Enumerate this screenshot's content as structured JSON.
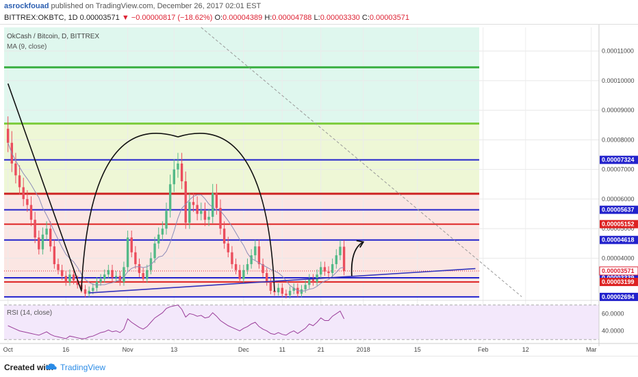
{
  "header": {
    "author": "asrockfouad",
    "published": "published on TradingView.com, December 26, 2017 02:01 EST",
    "symbol": "BITTREX:OKBTC, 1D",
    "last": "0.00003571",
    "change": "▼ −0.00000817 (−18.62%)",
    "o_label": "O:",
    "o": "0.00004389",
    "h_label": "H:",
    "h": "0.00004788",
    "l_label": "L:",
    "l": "0.00003330",
    "c_label": "C:",
    "c": "0.00003571"
  },
  "legend": {
    "title": "OkCash / Bitcoin, D, BITTREX",
    "ma": "MA (9, close)",
    "rsi": "RSI (14, close)"
  },
  "footer": {
    "created": "Created with",
    "brand": "TradingView"
  },
  "colors": {
    "up": "#53b987",
    "down": "#eb4d5c",
    "ma": "#8c8cb8",
    "green_line": "#3cb043",
    "blue_line": "#2222cc",
    "red_line": "#dd2222",
    "band_top": "#dff7ee",
    "band_mid": "#eef7d6",
    "band_low": "#fbe6e3",
    "rsi_bg": "#f3e8fb"
  },
  "chart_data": {
    "type": "candlestick",
    "y_unit": "BTC",
    "ylim": [
      2.6e-05,
      0.000118
    ],
    "y_ticks": [
      {
        "value": 0.00011,
        "label": "0.00011000"
      },
      {
        "value": 0.0001,
        "label": "0.00010000"
      },
      {
        "value": 9e-05,
        "label": "0.00009000"
      },
      {
        "value": 8e-05,
        "label": "0.00008000"
      },
      {
        "value": 7e-05,
        "label": "0.00007000"
      },
      {
        "value": 6e-05,
        "label": "0.00006000"
      },
      {
        "value": 5e-05,
        "label": "0.00005000"
      },
      {
        "value": 4e-05,
        "label": "0.00004000"
      }
    ],
    "x_ticks": [
      {
        "day": 0,
        "label": "Oct"
      },
      {
        "day": 15,
        "label": "16"
      },
      {
        "day": 31,
        "label": "Nov"
      },
      {
        "day": 43,
        "label": "13"
      },
      {
        "day": 61,
        "label": "Dec"
      },
      {
        "day": 71,
        "label": "11"
      },
      {
        "day": 81,
        "label": "21"
      },
      {
        "day": 92,
        "label": "2018"
      },
      {
        "day": 106,
        "label": "15"
      },
      {
        "day": 123,
        "label": "Feb"
      },
      {
        "day": 134,
        "label": "12"
      },
      {
        "day": 151,
        "label": "Mar"
      }
    ],
    "x_range_days": [
      -1,
      153
    ],
    "last_bar_day": 87,
    "price_levels": [
      {
        "value": 0.0001045,
        "color": "#3cb043",
        "label": ""
      },
      {
        "value": 8.55e-05,
        "color": "#7ccc3c",
        "label": ""
      },
      {
        "value": 7.324e-05,
        "color": "#2222cc",
        "label": "0.00007324"
      },
      {
        "value": 6.18e-05,
        "color": "#cc2222",
        "label": ""
      },
      {
        "value": 5.637e-05,
        "color": "#2222cc",
        "label": "0.00005637"
      },
      {
        "value": 5.152e-05,
        "color": "#dd2222",
        "label": "0.00005152"
      },
      {
        "value": 4.618e-05,
        "color": "#2222cc",
        "label": "0.00004618"
      },
      {
        "value": 3.339e-05,
        "color": "#2222cc",
        "label": "0.00003339"
      },
      {
        "value": 3.199e-05,
        "color": "#dd2222",
        "label": "0.00003199"
      },
      {
        "value": 2.694e-05,
        "color": "#2222cc",
        "label": "0.00002694"
      }
    ],
    "last_price": {
      "value": 3.571e-05,
      "label": "0.00003571"
    },
    "closes": [
      7.9e-05,
      7.2e-05,
      6.8e-05,
      6.4e-05,
      6e-05,
      5.8e-05,
      5.3e-05,
      4.7e-05,
      4.3e-05,
      4.8e-05,
      5e-05,
      4.4e-05,
      3.8e-05,
      3.6e-05,
      3.4e-05,
      3.2e-05,
      3.45e-05,
      3.25e-05,
      3.1e-05,
      2.95e-05,
      2.8e-05,
      2.9e-05,
      3e-05,
      3.2e-05,
      3.3e-05,
      3.45e-05,
      3.6e-05,
      3.35e-05,
      3.4e-05,
      3.2e-05,
      3.7e-05,
      4.7e-05,
      4.2e-05,
      3.8e-05,
      3.5e-05,
      3.3e-05,
      3.6e-05,
      4e-05,
      4.5e-05,
      4.8e-05,
      5e-05,
      5.6e-05,
      6.5e-05,
      7e-05,
      7.2e-05,
      6.6e-05,
      5.2e-05,
      5.9e-05,
      5.8e-05,
      5.5e-05,
      5.6e-05,
      5.3e-05,
      5.4e-05,
      6.2e-05,
      5.7e-05,
      5e-05,
      4.5e-05,
      4.2e-05,
      3.8e-05,
      3.6e-05,
      3.3e-05,
      3.6e-05,
      3.8e-05,
      4.1e-05,
      4.4e-05,
      3.8e-05,
      3.5e-05,
      3.2e-05,
      2.9e-05,
      2.85e-05,
      3e-05,
      2.8e-05,
      2.75e-05,
      2.9e-05,
      3e-05,
      2.8e-05,
      2.95e-05,
      3.1e-05,
      3.3e-05,
      3.2e-05,
      3.45e-05,
      3.7e-05,
      3.55e-05,
      3.5e-05,
      3.8e-05,
      4.1e-05,
      4.39e-05,
      3.57e-05
    ],
    "annotations": {
      "arc": [
        {
          "day": 19,
          "value": 2.88e-05
        },
        {
          "day": 44,
          "value": 8.1e-05
        },
        {
          "day": 69,
          "value": 2.88e-05
        }
      ],
      "downtrend": [
        {
          "day": 0,
          "value": 9.9e-05
        },
        {
          "day": 19,
          "value": 2.9e-05
        }
      ],
      "uptrend": [
        {
          "day": 21,
          "value": 2.83e-05
        },
        {
          "day": 121,
          "value": 3.65e-05
        }
      ],
      "dashed": [
        {
          "day": 50,
          "value": 0.000118
        },
        {
          "day": 133,
          "value": 2.7e-05
        }
      ],
      "arrow": {
        "from": {
          "day": 89,
          "value": 3.4e-05
        },
        "to": {
          "day": 92,
          "value": 4.55e-05
        }
      }
    },
    "rsi": {
      "ylim": [
        27,
        73
      ],
      "ticks": [
        {
          "value": 60,
          "label": "60.0000"
        },
        {
          "value": 40,
          "label": "40.0000"
        }
      ],
      "levels": [
        70,
        30
      ],
      "values": [
        46,
        44,
        42,
        40,
        39,
        38,
        37,
        36,
        35,
        37,
        39,
        36,
        34,
        33,
        32,
        31,
        34,
        33,
        32,
        31,
        31,
        33,
        34,
        36,
        38,
        39,
        41,
        39,
        40,
        38,
        42,
        54,
        50,
        47,
        44,
        42,
        45,
        50,
        55,
        58,
        61,
        66,
        68,
        69,
        70,
        65,
        56,
        60,
        59,
        57,
        58,
        55,
        56,
        61,
        57,
        52,
        49,
        46,
        44,
        42,
        40,
        43,
        45,
        48,
        50,
        45,
        42,
        40,
        37,
        36,
        38,
        36,
        35,
        38,
        40,
        37,
        40,
        43,
        48,
        46,
        50,
        55,
        52,
        52,
        57,
        60,
        63,
        54
      ]
    }
  }
}
